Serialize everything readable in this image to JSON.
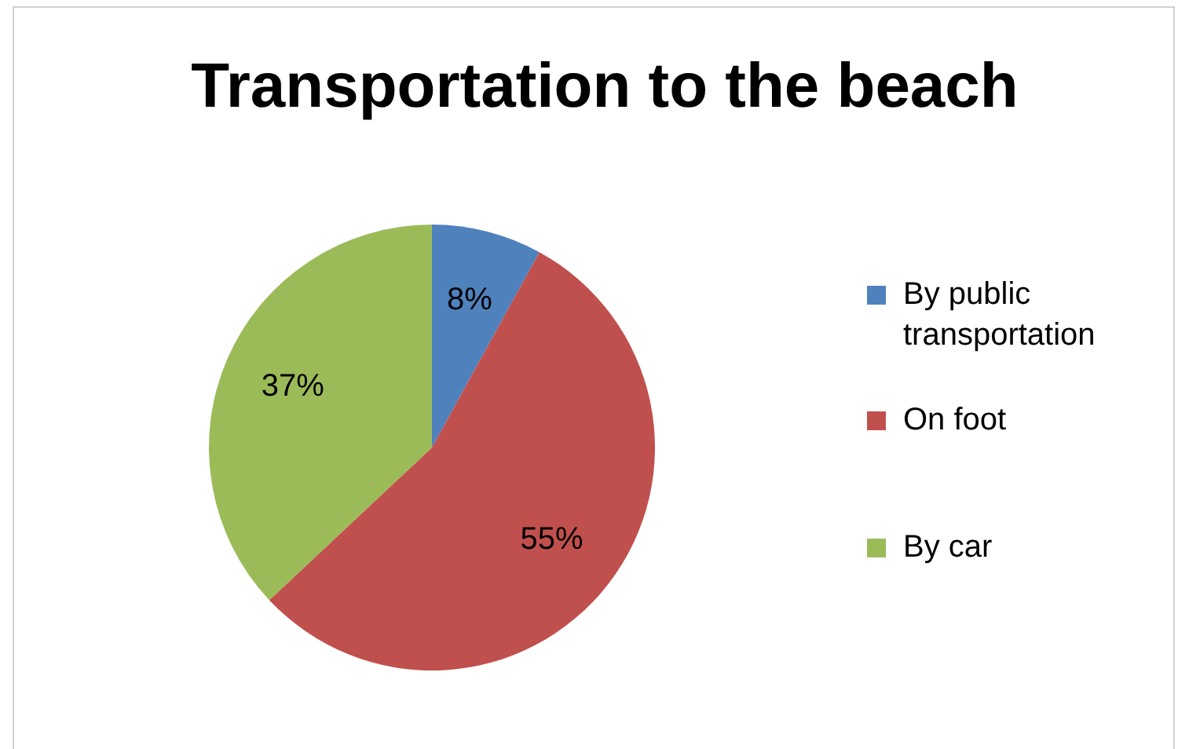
{
  "chart_data": {
    "type": "pie",
    "title": "Transportation to the beach",
    "categories": [
      "By public transportation",
      "On foot",
      "By car"
    ],
    "values": [
      8,
      55,
      37
    ],
    "value_labels": [
      "8%",
      "55%",
      "37%"
    ],
    "colors": [
      "#4f81bd",
      "#c0504d",
      "#9bbb59"
    ],
    "legend": "right"
  }
}
